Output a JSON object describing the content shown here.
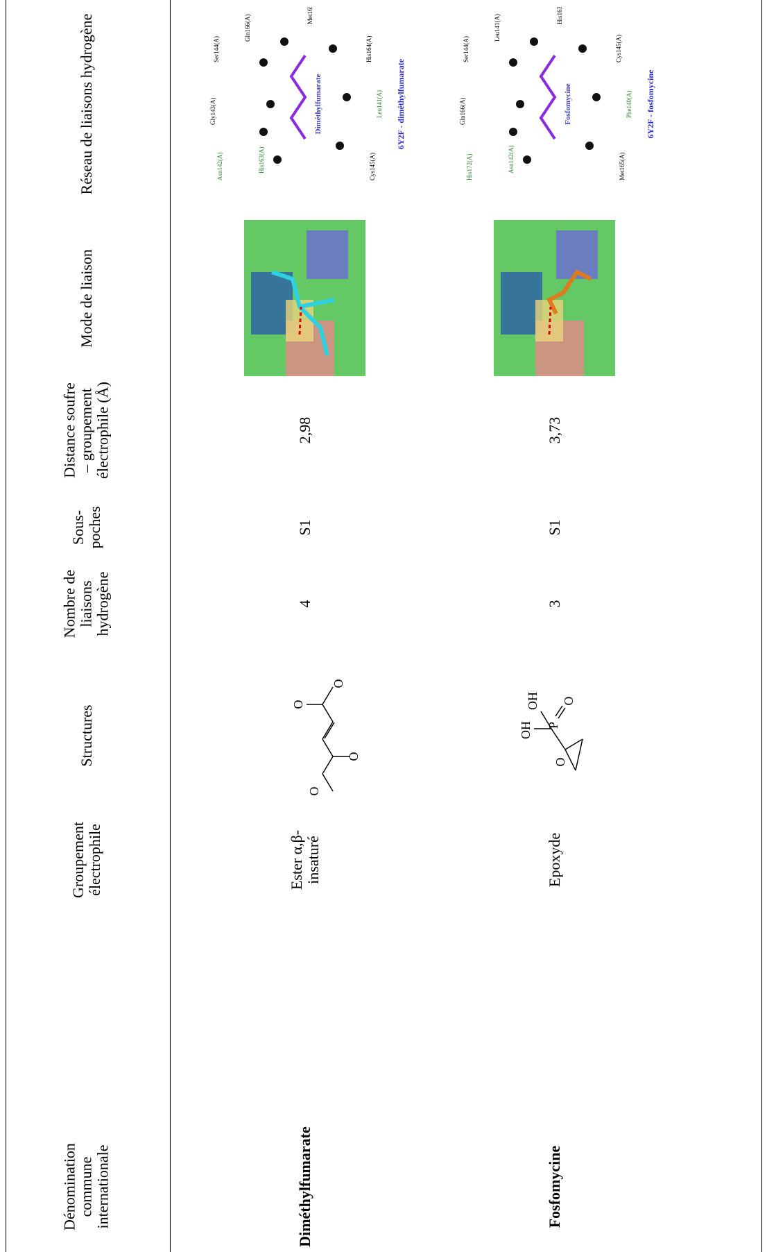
{
  "table": {
    "header": [
      "Dénomination commune internationale",
      "Groupement électrophile",
      "Structures",
      "Nombre de liaisons hydrogène",
      "Sous-poches",
      "Distance soufre – groupement électrophile (Å)",
      "Mode de liaison",
      "Réseau de liaisons hydrogène"
    ],
    "rows": [
      {
        "name": "Diméthylfumarate",
        "group": "Ester α,β-insaturé",
        "structure_atoms": [
          "O",
          "O",
          "O",
          "O"
        ],
        "hbonds": 4,
        "pockets": "S1",
        "distance": "2,98",
        "network": {
          "ligand": "Diméthylfumarate",
          "residues": [
            "Asn142(A)",
            "Gly143(A)",
            "Ser144(A)",
            "His163(A)",
            "Gln166(A)",
            "Cys145(A)",
            "Leu141(A)",
            "His164(A)",
            "Met165(A)"
          ],
          "caption": "6Y2F - diméthylfumarate"
        }
      },
      {
        "name": "Fosfomycine",
        "group": "Epoxyde",
        "structure_atoms": [
          "O",
          "OH",
          "OH",
          "P",
          "O"
        ],
        "hbonds": 3,
        "pockets": "S1",
        "distance": "3,73",
        "network": {
          "ligand": "Fosfomycine",
          "residues": [
            "His172(A)",
            "Gln166(A)",
            "Ser144(A)",
            "Asn142(A)",
            "Leu141(A)",
            "Met165(A)",
            "Phe140(A)",
            "Cys145(A)",
            "His163(A)"
          ],
          "caption": "6Y2F - fosfomycine"
        }
      }
    ]
  }
}
